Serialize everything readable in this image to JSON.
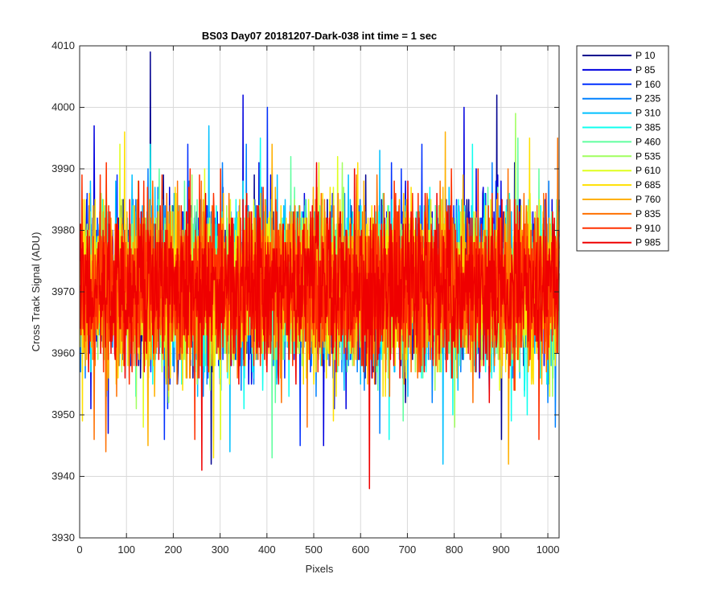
{
  "chart_data": {
    "type": "line",
    "title": "BS03 Day07 20181207-Dark-038 int time = 1 sec",
    "xlabel": "Pixels",
    "ylabel": "Cross Track Signal (ADU)",
    "xlim": [
      0,
      1024
    ],
    "ylim": [
      3930,
      4010
    ],
    "xticks": [
      0,
      100,
      200,
      300,
      400,
      500,
      600,
      700,
      800,
      900,
      1000
    ],
    "yticks": [
      3930,
      3940,
      3950,
      3960,
      3970,
      3980,
      3990,
      4000,
      4010
    ],
    "grid": true,
    "legend_position": "outside-right-top",
    "series": [
      {
        "name": "P 10",
        "color": "#00008F",
        "peaks": [
          [
            150,
            4009
          ],
          [
            890,
            4002
          ],
          [
            610,
            3989
          ]
        ],
        "dips": [
          [
            280,
            3942
          ],
          [
            900,
            3946
          ]
        ]
      },
      {
        "name": "P 85",
        "color": "#0000DF",
        "peaks": [
          [
            348,
            4002
          ],
          [
            30,
            3997
          ],
          [
            820,
            4000
          ]
        ],
        "dips": [
          [
            520,
            3945
          ],
          [
            60,
            3947
          ]
        ]
      },
      {
        "name": "P 160",
        "color": "#0030FF",
        "peaks": [
          [
            400,
            4000
          ],
          [
            230,
            3994
          ],
          [
            730,
            3994
          ]
        ],
        "dips": [
          [
            180,
            3946
          ],
          [
            470,
            3945
          ]
        ]
      },
      {
        "name": "P 235",
        "color": "#0080FF",
        "peaks": [
          [
            355,
            3994
          ],
          [
            880,
            3991
          ]
        ],
        "dips": [
          [
            1015,
            3948
          ],
          [
            640,
            3947
          ]
        ]
      },
      {
        "name": "P 310",
        "color": "#00C0FF",
        "peaks": [
          [
            275,
            3997
          ],
          [
            640,
            3993
          ]
        ],
        "dips": [
          [
            320,
            3944
          ],
          [
            775,
            3942
          ]
        ]
      },
      {
        "name": "P 385",
        "color": "#10FFEF",
        "peaks": [
          [
            150,
            3994
          ],
          [
            385,
            3995
          ]
        ],
        "dips": [
          [
            660,
            3946
          ],
          [
            955,
            3950
          ]
        ]
      },
      {
        "name": "P 460",
        "color": "#60FF9F",
        "peaks": [
          [
            450,
            3992
          ],
          [
            935,
            3995
          ]
        ],
        "dips": [
          [
            410,
            3943
          ],
          [
            690,
            3949
          ]
        ]
      },
      {
        "name": "P 535",
        "color": "#A0FF5F",
        "peaks": [
          [
            930,
            3999
          ],
          [
            560,
            3991
          ]
        ],
        "dips": [
          [
            800,
            3948
          ],
          [
            120,
            3951
          ]
        ]
      },
      {
        "name": "P 610",
        "color": "#E0FF1F",
        "peaks": [
          [
            85,
            3994
          ],
          [
            510,
            3991
          ]
        ],
        "dips": [
          [
            135,
            3948
          ],
          [
            300,
            3946
          ]
        ]
      },
      {
        "name": "P 685",
        "color": "#FFE000",
        "peaks": [
          [
            95,
            3996
          ],
          [
            960,
            3995
          ]
        ],
        "dips": [
          [
            5,
            3949
          ],
          [
            285,
            3943
          ]
        ]
      },
      {
        "name": "P 760",
        "color": "#FFB000",
        "peaks": [
          [
            410,
            3994
          ],
          [
            780,
            3996
          ]
        ],
        "dips": [
          [
            915,
            3942
          ],
          [
            145,
            3945
          ]
        ]
      },
      {
        "name": "P 835",
        "color": "#FF7000",
        "peaks": [
          [
            1020,
            3995
          ],
          [
            590,
            3989
          ]
        ],
        "dips": [
          [
            55,
            3944
          ],
          [
            30,
            3946
          ],
          [
            485,
            3948
          ]
        ]
      },
      {
        "name": "P 910",
        "color": "#FF3000",
        "peaks": [
          [
            255,
            3989
          ],
          [
            850,
            3990
          ]
        ],
        "dips": [
          [
            245,
            3946
          ],
          [
            980,
            3946
          ]
        ]
      },
      {
        "name": "P 985",
        "color": "#EF0000",
        "peaks": [
          [
            505,
            3991
          ],
          [
            700,
            3988
          ]
        ],
        "dips": [
          [
            260,
            3941
          ],
          [
            618,
            3938
          ]
        ]
      }
    ]
  }
}
